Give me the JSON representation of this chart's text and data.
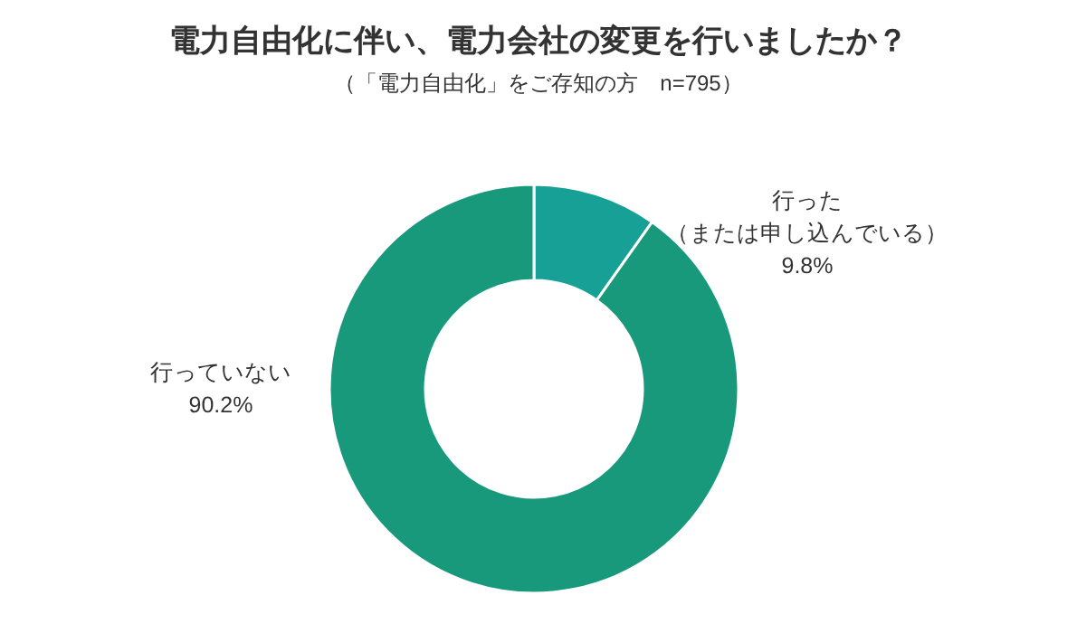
{
  "chart_data": {
    "type": "donut",
    "title": "電力自由化に伴い、電力会社の変更を行いましたか？",
    "subtitle": "（「電力自由化」をご存知の方　n=795）",
    "categories": [
      "行った（または申し込んでいる）",
      "行っていない"
    ],
    "values": [
      9.8,
      90.2
    ],
    "colors": [
      "#16a096",
      "#18997c"
    ],
    "value_labels": [
      "9.8%",
      "90.2%"
    ]
  }
}
